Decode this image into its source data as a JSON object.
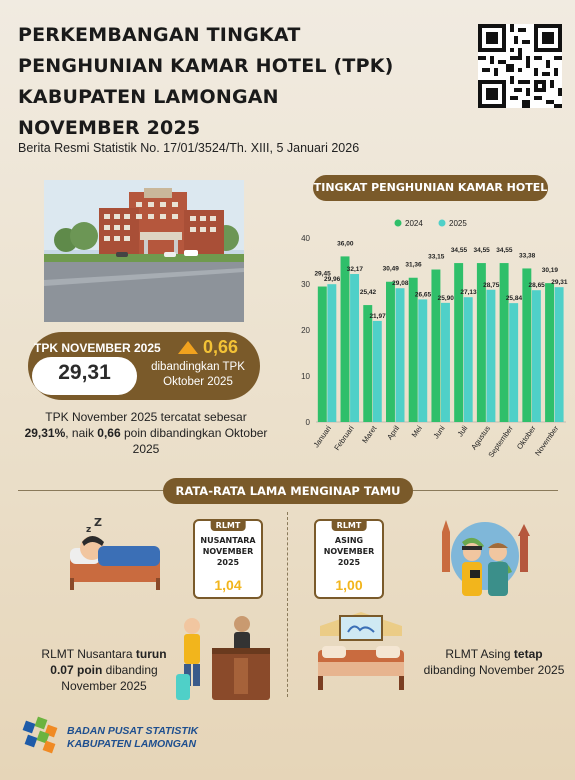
{
  "header": {
    "title_lines": [
      "PERKEMBANGAN TINGKAT",
      "PENGHUNIAN KAMAR HOTEL (TPK)",
      "KABUPATEN LAMONGAN",
      "NOVEMBER 2025"
    ],
    "subtitle": "Berita Resmi Statistik No. 17/01/3524/Th. XIII, 5 Januari 2026"
  },
  "tpk": {
    "label": "TPK NOVEMBER 2025",
    "value": "29,31",
    "change": "0,66",
    "comparison": "dibandingkan TPK Oktober 2025",
    "description_parts": [
      "TPK November 2025 tercatat sebesar ",
      "29,31%",
      ", naik ",
      "0,66",
      " poin dibandingkan Oktober 2025"
    ]
  },
  "chart_data": {
    "type": "bar",
    "title": "TINGKAT PENGHUNIAN KAMAR HOTEL",
    "categories": [
      "Januari",
      "Februari",
      "Maret",
      "April",
      "Mei",
      "Juni",
      "Juli",
      "Agustus",
      "September",
      "Oktober",
      "November"
    ],
    "series": [
      {
        "name": "2024",
        "color": "#2fbf6a",
        "values": [
          29.45,
          36.0,
          25.42,
          30.49,
          31.36,
          33.15,
          34.55,
          34.55,
          34.55,
          33.38,
          30.19
        ]
      },
      {
        "name": "2025",
        "color": "#4fd0c8",
        "values": [
          29.96,
          32.17,
          21.97,
          29.08,
          26.65,
          25.9,
          27.13,
          28.75,
          25.84,
          28.65,
          29.31
        ]
      }
    ],
    "labels_2024": [
      "29,45",
      "36,00",
      "25,42",
      "30,49",
      "31,36",
      "33,15",
      "34,55",
      "34,55",
      "34,55",
      "33,38",
      "30,19"
    ],
    "labels_2025": [
      "29,96",
      "32,17",
      "21,97",
      "29,08",
      "26,65",
      "25,90",
      "27,13",
      "28,75",
      "25,84",
      "28,65",
      "29,31"
    ],
    "ylim": [
      0,
      40
    ],
    "yticks": [
      "0",
      "10",
      "20",
      "30",
      "40"
    ],
    "legend_position": "top"
  },
  "rlmt": {
    "banner": "RATA-RATA LAMA MENGINAP TAMU",
    "nusantara": {
      "tag": "RLMT",
      "label_lines": [
        "NUSANTARA",
        "NOVEMBER",
        "2025"
      ],
      "value": "1,04"
    },
    "asing": {
      "tag": "RLMT",
      "label_lines": [
        "ASING",
        "NOVEMBER",
        "2025"
      ],
      "value": "1,00"
    },
    "nusantara_desc": [
      "RLMT Nusantara ",
      "turun",
      " ",
      "0.07 poin",
      " dibanding",
      "November 2025"
    ],
    "asing_desc": [
      "RLMT Asing ",
      "tetap",
      "dibanding November 2025"
    ]
  },
  "footer": {
    "org_line1": "BADAN PUSAT STATISTIK",
    "org_line2": "KABUPATEN LAMONGAN"
  },
  "colors": {
    "brand_brown": "#7a5a2a",
    "accent_yellow": "#f2b51c",
    "green_2024": "#2fbf6a",
    "teal_2025": "#4fd0c8"
  }
}
